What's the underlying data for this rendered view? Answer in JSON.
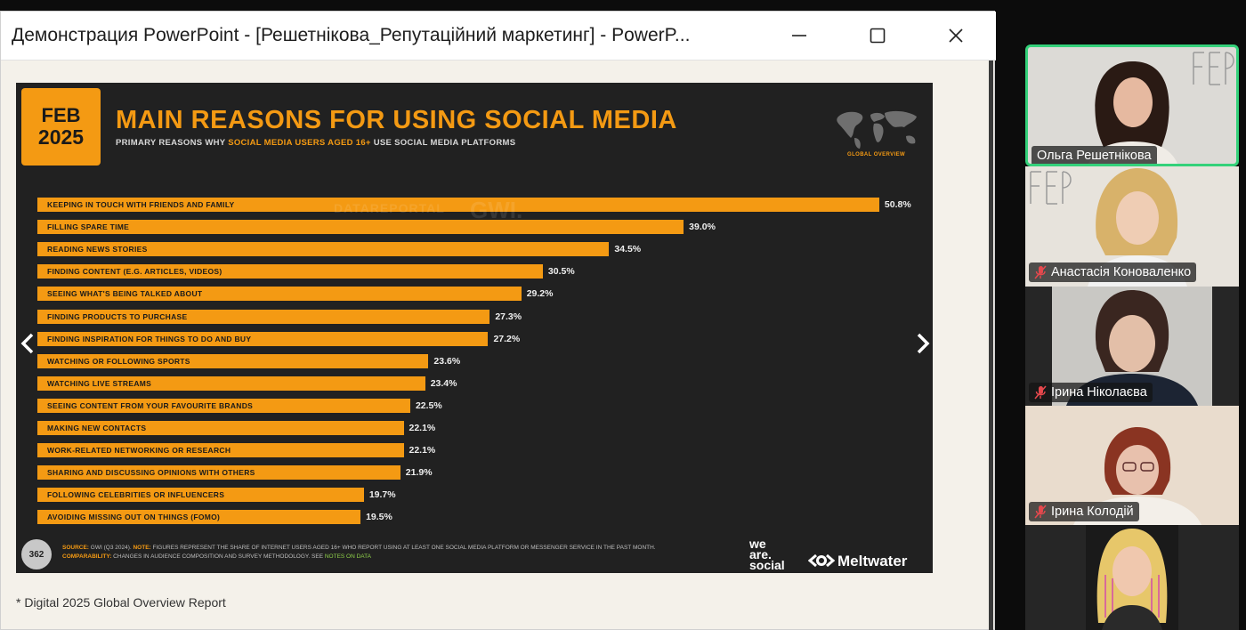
{
  "window": {
    "title": "Демонстрация PowerPoint - [Решетнікова_Репутаційний маркетинг] - PowerP..."
  },
  "slide": {
    "date_month": "FEB",
    "date_year": "2025",
    "title": "MAIN REASONS FOR USING SOCIAL MEDIA",
    "subtitle_pre": "PRIMARY REASONS WHY ",
    "subtitle_highlight": "SOCIAL MEDIA USERS AGED 16+",
    "subtitle_post": " USE SOCIAL MEDIA PLATFORMS",
    "section_label": "GLOBAL OVERVIEW",
    "watermark": "DATAREPORTAL",
    "watermark2": "GWI.",
    "page_number": "362",
    "source_key": "SOURCE:",
    "source_text": " GWI (Q3 2024). ",
    "notes_key": "NOTE:",
    "notes_text": " FIGURES REPRESENT THE SHARE OF INTERNET USERS AGED 16+ WHO REPORT USING AT LEAST ONE SOCIAL MEDIA PLATFORM OR MESSENGER SERVICE IN THE PAST MONTH.",
    "comparability_key": "COMPARABILITY:",
    "comparability_text": " CHANGES IN AUDIENCE COMPOSITION AND SURVEY METHODOLOGY. SEE ",
    "comparability_link": "NOTES ON DATA",
    "logo_was_1": "we",
    "logo_was_2": "are.",
    "logo_was_3": "social",
    "logo_meltwater": "Meltwater",
    "accent_color": "#f49a13",
    "background_color": "#212121"
  },
  "chart_data": {
    "type": "bar",
    "orientation": "horizontal",
    "categories": [
      "KEEPING IN TOUCH WITH FRIENDS AND FAMILY",
      "FILLING SPARE TIME",
      "READING NEWS STORIES",
      "FINDING CONTENT (E.G. ARTICLES, VIDEOS)",
      "SEEING WHAT'S BEING TALKED ABOUT",
      "FINDING PRODUCTS TO PURCHASE",
      "FINDING INSPIRATION FOR THINGS TO DO AND BUY",
      "WATCHING OR FOLLOWING SPORTS",
      "WATCHING LIVE STREAMS",
      "SEEING CONTENT FROM YOUR FAVOURITE BRANDS",
      "MAKING NEW CONTACTS",
      "WORK-RELATED NETWORKING OR RESEARCH",
      "SHARING AND DISCUSSING OPINIONS WITH OTHERS",
      "FOLLOWING CELEBRITIES OR INFLUENCERS",
      "AVOIDING MISSING OUT ON THINGS (FOMO)"
    ],
    "values": [
      50.8,
      39.0,
      34.5,
      30.5,
      29.2,
      27.3,
      27.2,
      23.6,
      23.4,
      22.5,
      22.1,
      22.1,
      21.9,
      19.7,
      19.5
    ],
    "value_labels": [
      "50.8%",
      "39.0%",
      "34.5%",
      "30.5%",
      "29.2%",
      "27.3%",
      "27.2%",
      "23.6%",
      "23.4%",
      "22.5%",
      "22.1%",
      "22.1%",
      "21.9%",
      "19.7%",
      "19.5%"
    ],
    "unit": "%",
    "title": "MAIN REASONS FOR USING SOCIAL MEDIA",
    "bar_color": "#f49a13",
    "grid": false
  },
  "footnote": "* Digital 2025 Global Overview Report",
  "participants": [
    {
      "name": "Ольга Решетнікова",
      "muted": false,
      "active": true
    },
    {
      "name": "Анастасія Коноваленко",
      "muted": true,
      "active": false
    },
    {
      "name": "Ірина Ніколаєва",
      "muted": true,
      "active": false
    },
    {
      "name": "Ірина Колодій",
      "muted": true,
      "active": false
    }
  ],
  "colors": {
    "active_speaker_border": "#34d17a",
    "muted_icon": "#e5484d"
  }
}
